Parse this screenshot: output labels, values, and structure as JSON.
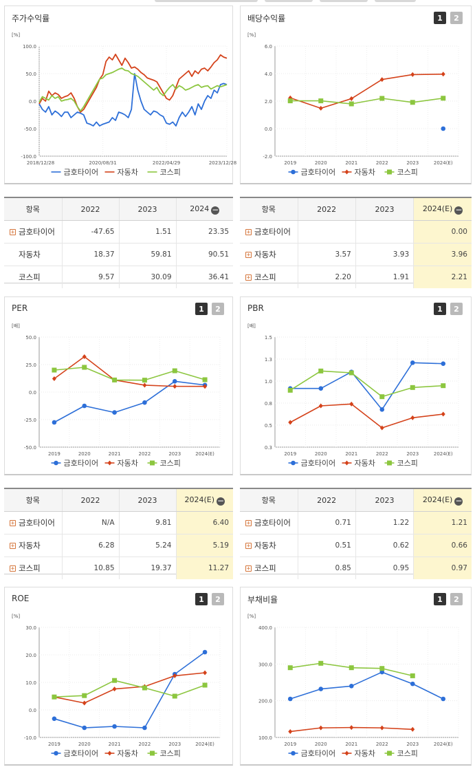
{
  "colors": {
    "kumho": "#2d6fd8",
    "auto": "#d4421a",
    "kospi": "#8cc63f"
  },
  "pager": {
    "page1": "1",
    "page2": "2"
  },
  "legend_names": [
    "금호타이어",
    "자동차",
    "코스피"
  ],
  "charts": {
    "stock": {
      "title": "주가수익률",
      "unit": "[%]",
      "chart_data": {
        "type": "line",
        "ylim": [
          -100,
          100
        ],
        "yticks": [
          "100.0",
          "50.0",
          "0.0",
          "-50.0",
          "-100.0"
        ],
        "xticks": [
          "2018/12/28",
          "2020/08/31",
          "2022/04/29",
          "2023/12/28"
        ],
        "xtick_index": [
          0,
          20,
          40,
          60
        ],
        "series": [
          {
            "name": "금호타이어",
            "color": "#2d6fd8",
            "values": [
              -5,
              -15,
              -20,
              -10,
              -25,
              -18,
              -22,
              -28,
              -20,
              -20,
              -30,
              -25,
              -20,
              -22,
              -25,
              -40,
              -42,
              -45,
              -38,
              -45,
              -42,
              -40,
              -38,
              -30,
              -35,
              -20,
              -22,
              -25,
              -30,
              -15,
              50,
              20,
              0,
              -15,
              -20,
              -25,
              -18,
              -20,
              -25,
              -28,
              -40,
              -42,
              -38,
              -45,
              -30,
              -20,
              -28,
              -20,
              -10,
              -25,
              -5,
              -15,
              0,
              10,
              5,
              20,
              15,
              30,
              32,
              30
            ]
          },
          {
            "name": "자동차",
            "color": "#d4421a",
            "values": [
              -5,
              5,
              0,
              18,
              10,
              15,
              12,
              5,
              8,
              10,
              15,
              5,
              -10,
              -20,
              -15,
              -5,
              5,
              15,
              25,
              40,
              48,
              72,
              80,
              75,
              85,
              75,
              65,
              78,
              70,
              60,
              62,
              58,
              52,
              48,
              42,
              40,
              38,
              35,
              25,
              15,
              5,
              2,
              10,
              25,
              40,
              45,
              50,
              55,
              45,
              55,
              50,
              58,
              60,
              55,
              62,
              70,
              75,
              84,
              80,
              78
            ]
          },
          {
            "name": "코스피",
            "color": "#8cc63f",
            "values": [
              -2,
              8,
              5,
              2,
              10,
              5,
              8,
              0,
              2,
              3,
              5,
              0,
              -10,
              -18,
              -10,
              0,
              10,
              20,
              30,
              40,
              42,
              48,
              50,
              52,
              55,
              58,
              60,
              56,
              55,
              50,
              48,
              45,
              40,
              35,
              30,
              25,
              20,
              25,
              15,
              10,
              18,
              25,
              30,
              22,
              28,
              25,
              20,
              22,
              25,
              28,
              30,
              25,
              27,
              28,
              22,
              25,
              28,
              26,
              28,
              30
            ]
          }
        ]
      }
    },
    "dividend": {
      "title": "배당수익률",
      "unit": "[%]",
      "chart_data": {
        "type": "line",
        "ylim": [
          -2,
          6
        ],
        "yticks": [
          "6.0",
          "4.0",
          "2.0",
          "0.0",
          "-2.0"
        ],
        "categories": [
          "2019",
          "2020",
          "2021",
          "2022",
          "2023",
          "2024(E)"
        ],
        "series": [
          {
            "name": "금호타이어",
            "color": "#2d6fd8",
            "values": [
              null,
              null,
              null,
              null,
              null,
              0.0
            ]
          },
          {
            "name": "자동차",
            "color": "#d4421a",
            "values": [
              2.24,
              1.48,
              2.18,
              3.57,
              3.93,
              3.96
            ]
          },
          {
            "name": "코스피",
            "color": "#8cc63f",
            "values": [
              2.02,
              2.02,
              1.8,
              2.2,
              1.91,
              2.21
            ]
          }
        ]
      }
    },
    "per": {
      "title": "PER",
      "unit": "[배]",
      "chart_data": {
        "type": "line",
        "ylim": [
          -50,
          50
        ],
        "yticks": [
          "50.0",
          "25.0",
          "0.0",
          "-25.0",
          "-50.0"
        ],
        "categories": [
          "2019",
          "2020",
          "2021",
          "2022",
          "2023",
          "2024(E)"
        ],
        "series": [
          {
            "name": "금호타이어",
            "color": "#2d6fd8",
            "values": [
              -27.5,
              -12.5,
              -18.5,
              -9.5,
              9.81,
              6.4
            ]
          },
          {
            "name": "자동차",
            "color": "#d4421a",
            "values": [
              12.2,
              32.2,
              11.0,
              6.28,
              5.24,
              5.19
            ]
          },
          {
            "name": "코스피",
            "color": "#8cc63f",
            "values": [
              20.0,
              22.5,
              11.0,
              10.85,
              19.37,
              11.27
            ]
          }
        ]
      }
    },
    "pbr": {
      "title": "PBR",
      "unit": "[배]",
      "chart_data": {
        "type": "line",
        "ylim": [
          0.3,
          1.5
        ],
        "yticks": [
          "1.5",
          "1.3",
          "1.0",
          "0.8",
          "0.5",
          "0.3"
        ],
        "ytick_values": [
          1.5,
          1.25,
          1.0,
          0.75,
          0.5,
          0.25
        ],
        "categories": [
          "2019",
          "2020",
          "2021",
          "2022",
          "2023",
          "2024(E)"
        ],
        "series": [
          {
            "name": "금호타이어",
            "color": "#2d6fd8",
            "values": [
              0.94,
              0.94,
              1.12,
              0.71,
              1.22,
              1.21
            ]
          },
          {
            "name": "자동차",
            "color": "#d4421a",
            "values": [
              0.57,
              0.75,
              0.77,
              0.51,
              0.62,
              0.66
            ]
          },
          {
            "name": "코스피",
            "color": "#8cc63f",
            "values": [
              0.92,
              1.13,
              1.11,
              0.85,
              0.95,
              0.97
            ]
          }
        ]
      }
    },
    "roe": {
      "title": "ROE",
      "unit": "[%]",
      "chart_data": {
        "type": "line",
        "ylim": [
          -10,
          30
        ],
        "yticks": [
          "30.0",
          "20.0",
          "10.0",
          "0.0",
          "-10.0"
        ],
        "categories": [
          "2019",
          "2020",
          "2021",
          "2022",
          "2023",
          "2024(E)"
        ],
        "series": [
          {
            "name": "금호타이어",
            "color": "#2d6fd8",
            "values": [
              -3.2,
              -6.5,
              -6.0,
              -6.5,
              13.0,
              21.0
            ]
          },
          {
            "name": "자동차",
            "color": "#d4421a",
            "values": [
              4.7,
              2.5,
              7.6,
              8.5,
              12.4,
              13.5
            ]
          },
          {
            "name": "코스피",
            "color": "#8cc63f",
            "values": [
              4.7,
              5.2,
              10.7,
              8.0,
              5.0,
              9.0
            ]
          }
        ]
      }
    },
    "debt": {
      "title": "부채비율",
      "unit": "[%]",
      "chart_data": {
        "type": "line",
        "ylim": [
          100,
          400
        ],
        "yticks": [
          "400.0",
          "300.0",
          "200.0",
          "100.0"
        ],
        "categories": [
          "2019",
          "2020",
          "2021",
          "2022",
          "2023",
          "2024(E)"
        ],
        "series": [
          {
            "name": "금호타이어",
            "color": "#2d6fd8",
            "values": [
              205,
              232,
              240,
              278,
              246,
              205
            ]
          },
          {
            "name": "자동차",
            "color": "#d4421a",
            "values": [
              116,
              126,
              127,
              126,
              122,
              null
            ]
          },
          {
            "name": "코스피",
            "color": "#8cc63f",
            "values": [
              290,
              302,
              290,
              288,
              268,
              null
            ]
          }
        ]
      }
    }
  },
  "tables": {
    "stock": {
      "headers": [
        "항목",
        "2022",
        "2023",
        "2024"
      ],
      "rows": [
        {
          "name": "금호타이어",
          "plus": true,
          "values": [
            "-47.65",
            "1.51",
            "23.35"
          ]
        },
        {
          "name": "자동차",
          "plus": false,
          "values": [
            "18.37",
            "59.81",
            "90.51"
          ]
        },
        {
          "name": "코스피",
          "plus": false,
          "values": [
            "9.57",
            "30.09",
            "36.41"
          ]
        }
      ]
    },
    "dividend": {
      "headers": [
        "항목",
        "2022",
        "2023",
        "2024(E)"
      ],
      "rows": [
        {
          "name": "금호타이어",
          "plus": true,
          "values": [
            "",
            "",
            "0.00"
          ]
        },
        {
          "name": "자동차",
          "plus": true,
          "values": [
            "3.57",
            "3.93",
            "3.96"
          ]
        },
        {
          "name": "코스피",
          "plus": true,
          "values": [
            "2.20",
            "1.91",
            "2.21"
          ]
        }
      ]
    },
    "per": {
      "headers": [
        "항목",
        "2022",
        "2023",
        "2024(E)"
      ],
      "rows": [
        {
          "name": "금호타이어",
          "plus": true,
          "values": [
            "N/A",
            "9.81",
            "6.40"
          ]
        },
        {
          "name": "자동차",
          "plus": true,
          "values": [
            "6.28",
            "5.24",
            "5.19"
          ]
        },
        {
          "name": "코스피",
          "plus": true,
          "values": [
            "10.85",
            "19.37",
            "11.27"
          ]
        }
      ]
    },
    "pbr": {
      "headers": [
        "항목",
        "2022",
        "2023",
        "2024(E)"
      ],
      "rows": [
        {
          "name": "금호타이어",
          "plus": true,
          "values": [
            "0.71",
            "1.22",
            "1.21"
          ]
        },
        {
          "name": "자동차",
          "plus": true,
          "values": [
            "0.51",
            "0.62",
            "0.66"
          ]
        },
        {
          "name": "코스피",
          "plus": true,
          "values": [
            "0.85",
            "0.95",
            "0.97"
          ]
        }
      ]
    }
  }
}
